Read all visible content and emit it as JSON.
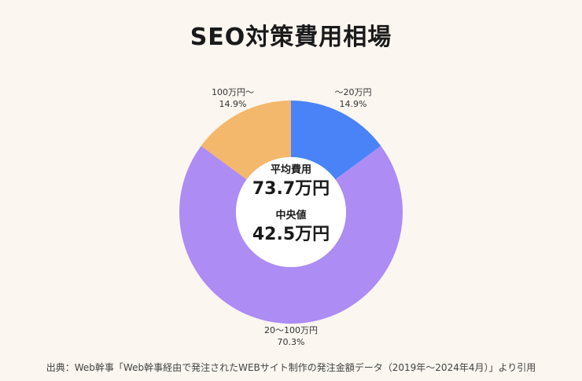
{
  "chart_data": {
    "type": "pie",
    "title": "SEO対策費用相場",
    "slices": [
      {
        "label": "〜20万円",
        "value": 14.9,
        "value_label": "14.9%",
        "color": "#4a83f7"
      },
      {
        "label": "20〜100万円",
        "value": 70.3,
        "value_label": "70.3%",
        "color": "#ad8cf4"
      },
      {
        "label": "100万円〜",
        "value": 14.9,
        "value_label": "14.9%",
        "color": "#f3b86b"
      }
    ],
    "center": {
      "average_caption": "平均費用",
      "average_value": "73.7万円",
      "median_caption": "中央値",
      "median_value": "42.5万円"
    },
    "source": "出典：Web幹事「Web幹事経由で発注されたWEBサイト制作の発注金額データ（2019年〜2024年4月）」より引用"
  }
}
